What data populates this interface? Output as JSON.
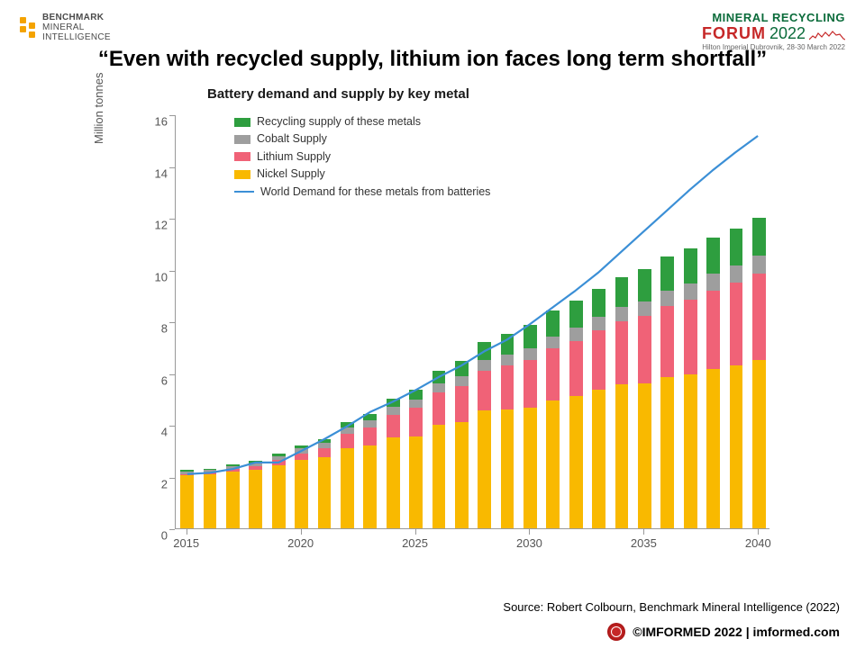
{
  "logos": {
    "left_line1": "BENCHMARK",
    "left_line2": "MINERAL",
    "left_line3": "INTELLIGENCE",
    "right_line1": "MINERAL RECYCLING",
    "right_forum": "FORUM",
    "right_year": "2022",
    "right_sub": "Hilton Imperial Dubrovnik, 28-30 March 2022"
  },
  "headline": "“Even with recycled supply, lithium ion faces long term shortfall”",
  "chart": {
    "title": "Battery demand and supply by key metal",
    "y_axis_label": "Million tonnes",
    "type": "stacked-bar-with-line",
    "ylim": [
      0,
      16
    ],
    "ytick_step": 2,
    "yticks": [
      0,
      2,
      4,
      6,
      8,
      10,
      12,
      14,
      16
    ],
    "years": [
      2015,
      2016,
      2017,
      2018,
      2019,
      2020,
      2021,
      2022,
      2023,
      2024,
      2025,
      2026,
      2027,
      2028,
      2029,
      2030,
      2031,
      2032,
      2033,
      2034,
      2035,
      2036,
      2037,
      2038,
      2039,
      2040
    ],
    "xticks": [
      2015,
      2020,
      2025,
      2030,
      2035,
      2040
    ],
    "series": {
      "nickel": {
        "label": "Nickel Supply",
        "color": "#f9b900",
        "values": [
          2.05,
          2.1,
          2.2,
          2.25,
          2.45,
          2.65,
          2.75,
          3.1,
          3.2,
          3.5,
          3.55,
          4.0,
          4.1,
          4.55,
          4.6,
          4.65,
          4.95,
          5.1,
          5.35,
          5.55,
          5.6,
          5.85,
          5.95,
          6.15,
          6.3,
          6.5
        ]
      },
      "lithium": {
        "label": "Lithium Supply",
        "color": "#f06277",
        "values": [
          0.05,
          0.05,
          0.1,
          0.15,
          0.2,
          0.25,
          0.35,
          0.55,
          0.7,
          0.9,
          1.1,
          1.25,
          1.4,
          1.55,
          1.7,
          1.85,
          2.0,
          2.15,
          2.3,
          2.45,
          2.6,
          2.75,
          2.9,
          3.05,
          3.2,
          3.35
        ]
      },
      "cobalt": {
        "label": "Cobalt Supply",
        "color": "#9e9e9e",
        "values": [
          0.1,
          0.1,
          0.1,
          0.12,
          0.15,
          0.18,
          0.2,
          0.25,
          0.28,
          0.3,
          0.32,
          0.35,
          0.38,
          0.4,
          0.42,
          0.45,
          0.47,
          0.5,
          0.52,
          0.55,
          0.57,
          0.6,
          0.62,
          0.64,
          0.66,
          0.68
        ]
      },
      "recycling": {
        "label": "Recycling supply of these metals",
        "color": "#2e9e3f",
        "values": [
          0.05,
          0.05,
          0.06,
          0.08,
          0.1,
          0.12,
          0.15,
          0.2,
          0.25,
          0.3,
          0.4,
          0.5,
          0.6,
          0.7,
          0.8,
          0.9,
          1.0,
          1.05,
          1.1,
          1.15,
          1.25,
          1.3,
          1.35,
          1.4,
          1.44,
          1.47
        ]
      }
    },
    "stack_order": [
      "nickel",
      "lithium",
      "cobalt",
      "recycling"
    ],
    "demand_line": {
      "label": "World Demand for these metals from batteries",
      "color": "#3b8fd6",
      "width": 2.2,
      "values": [
        2.1,
        2.15,
        2.3,
        2.55,
        2.55,
        3.0,
        3.45,
        3.95,
        4.5,
        4.9,
        5.35,
        5.85,
        6.3,
        6.85,
        7.3,
        7.9,
        8.55,
        9.2,
        9.9,
        10.7,
        11.5,
        12.3,
        13.1,
        13.85,
        14.55,
        15.2
      ]
    },
    "legend_order": [
      "recycling",
      "cobalt",
      "lithium",
      "nickel",
      "demand_line"
    ],
    "bar_width_ratio": 0.58,
    "axis_color": "#999999",
    "background": "#ffffff",
    "label_fontsize": 13
  },
  "source": "Source: Robert Colbourn, Benchmark Mineral Intelligence (2022)",
  "footer": "©IMFORMED 2022  |  imformed.com"
}
